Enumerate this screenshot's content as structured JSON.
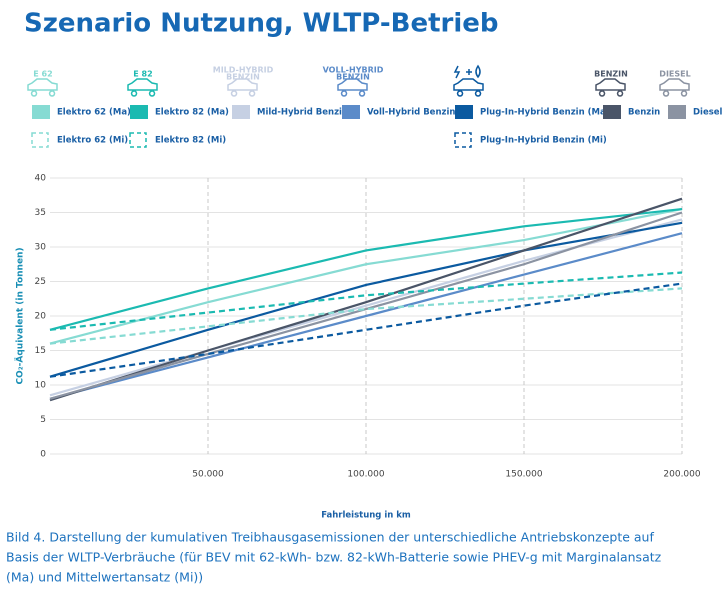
{
  "chart_data": {
    "type": "line",
    "title": "Szenario Nutzung, WLTP-Betrieb",
    "icon_labels": [
      [
        "E 62"
      ],
      [
        "E 82"
      ],
      [
        "MILD-HYBRID",
        "BENZIN"
      ],
      [
        "VOLL-HYBRID",
        "BENZIN"
      ],
      [
        "BENZIN"
      ],
      [
        "DIESEL"
      ]
    ],
    "x_label": "Fahrleistung in km",
    "y_label": "CO₂-Äquivalent (in Tonnen)",
    "x": [
      0,
      50000,
      100000,
      150000,
      200000
    ],
    "xlim": [
      0,
      200000
    ],
    "xticks": [
      {
        "value": 50000,
        "label": "50.000"
      },
      {
        "value": 100000,
        "label": "100.000"
      },
      {
        "value": 150000,
        "label": "150.000"
      },
      {
        "value": 200000,
        "label": "200.000"
      }
    ],
    "ylim": [
      0,
      40
    ],
    "yticks": [
      0,
      5,
      10,
      15,
      20,
      25,
      30,
      35,
      40
    ],
    "grid": true,
    "series": [
      {
        "name": "Elektro 62 (Ma)",
        "color": "#86dbd3",
        "dashed": false,
        "values": [
          16,
          22,
          27.5,
          31,
          35.5
        ]
      },
      {
        "name": "Elektro 82 (Ma)",
        "color": "#1bbab1",
        "dashed": false,
        "values": [
          18,
          24,
          29.5,
          33,
          35.5
        ]
      },
      {
        "name": "Mild-Hybrid Benzin",
        "color": "#c6d0e3",
        "dashed": false,
        "values": [
          8.5,
          15,
          21.5,
          28,
          34
        ]
      },
      {
        "name": "Voll-Hybrid Benzin",
        "color": "#5b8bc9",
        "dashed": false,
        "values": [
          8,
          14,
          20,
          26,
          32
        ]
      },
      {
        "name": "Plug-In-Hybrid Benzin (Ma)",
        "color": "#0b5aa0",
        "dashed": false,
        "values": [
          11.2,
          18,
          24.5,
          29.5,
          33.5
        ]
      },
      {
        "name": "Benzin",
        "color": "#4a5568",
        "dashed": false,
        "values": [
          7.8,
          15,
          22,
          29.5,
          37
        ]
      },
      {
        "name": "Diesel",
        "color": "#8b93a2",
        "dashed": false,
        "values": [
          8,
          14.5,
          21,
          27.5,
          35
        ]
      },
      {
        "name": "Elektro 62 (Mi)",
        "color": "#86dbd3",
        "dashed": true,
        "values": [
          16,
          18.5,
          21,
          22.5,
          24
        ]
      },
      {
        "name": "Elektro 82 (Mi)",
        "color": "#1bbab1",
        "dashed": true,
        "values": [
          18,
          20.5,
          23,
          24.7,
          26.3
        ]
      },
      {
        "name": "Plug-In-Hybrid Benzin (Mi)",
        "color": "#0b5aa0",
        "dashed": true,
        "values": [
          11.2,
          14.5,
          18,
          21.5,
          24.7
        ]
      }
    ],
    "caption": [
      "Bild 4.  Darstellung der kumulativen Treibhausgasemissionen der unterschiedliche Antriebskonzepte auf",
      "Basis der WLTP-Verbräuche (für BEV mit 62-kWh- bzw. 82-kWh-Batterie sowie PHEV-g mit Marginalansatz",
      "(Ma) und Mittelwertansatz (Mi))"
    ]
  }
}
